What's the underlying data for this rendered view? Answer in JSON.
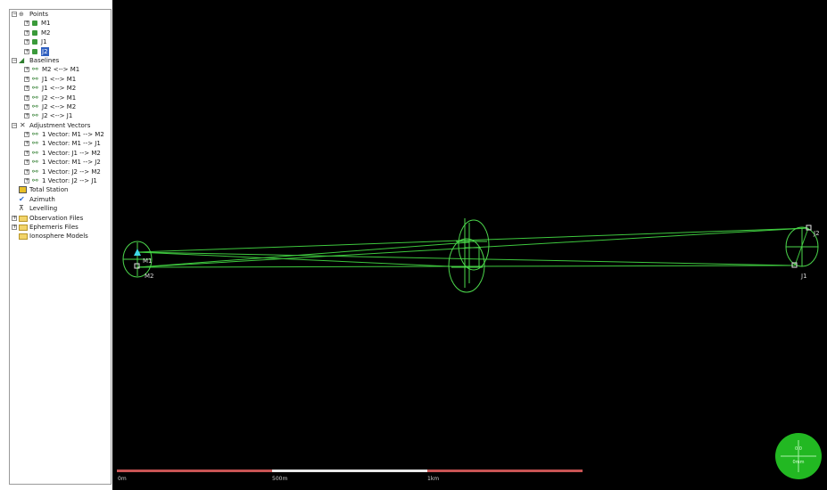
{
  "tree": {
    "points": {
      "label": "Points",
      "items": [
        "M1",
        "M2",
        "J1",
        "J2"
      ]
    },
    "baselines": {
      "label": "Baselines",
      "items": [
        "M2 <--> M1",
        "J1 <--> M1",
        "J1 <--> M2",
        "J2 <--> M1",
        "J2 <--> M2",
        "J2 <--> J1"
      ]
    },
    "vectors": {
      "label": "Adjustment Vectors",
      "items": [
        "1 Vector: M1 --> M2",
        "1 Vector: M1 --> J1",
        "1 Vector: J1 --> M2",
        "1 Vector: M1 --> J2",
        "1 Vector: J2 --> M2",
        "1 Vector: J2 --> J1"
      ]
    },
    "other": [
      "Total Station",
      "Azimuth",
      "Levelling"
    ],
    "folders": [
      "Observation Files",
      "Ephemeris Files",
      "Ionosphere Models"
    ]
  },
  "map": {
    "points": {
      "M1": "M1",
      "M2": "M2",
      "J1": "J1",
      "J2": "J2"
    },
    "line_color": "#3ec83e",
    "ellipse_color": "#4cd84c",
    "background": "#000000"
  },
  "scale_bar": {
    "labels": [
      "0m",
      "500m",
      "1km"
    ],
    "colors": [
      "#c85454",
      "#e8e8e8",
      "#c85454"
    ]
  },
  "north_indicator": {
    "top": "0.0",
    "bottom": "0mm",
    "color": "#22b822"
  }
}
